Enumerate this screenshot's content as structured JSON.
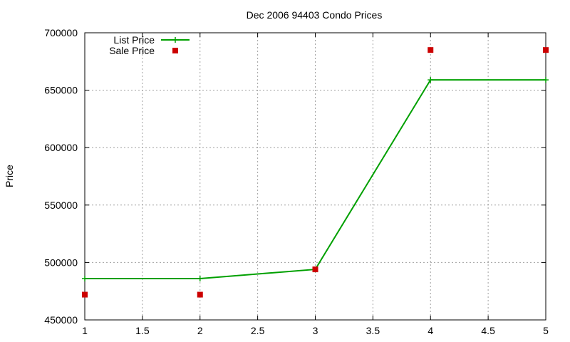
{
  "chart_data": {
    "type": "line",
    "title": "Dec 2006 94403 Condo Prices",
    "xlabel": "",
    "ylabel": "Price",
    "xlim": [
      1,
      5
    ],
    "ylim": [
      450000,
      700000
    ],
    "xticks": [
      "1",
      "1.5",
      "2",
      "2.5",
      "3",
      "3.5",
      "4",
      "4.5",
      "5"
    ],
    "yticks": [
      "450000",
      "500000",
      "550000",
      "600000",
      "650000",
      "700000"
    ],
    "grid": true,
    "legend_position": "top-left",
    "series": [
      {
        "name": "List Price",
        "style": "line-with-plus-markers",
        "color": "#00a000",
        "x": [
          1,
          2,
          3,
          4,
          5
        ],
        "y": [
          486000,
          486000,
          494000,
          659000,
          659000
        ]
      },
      {
        "name": "Sale Price",
        "style": "square-markers",
        "color": "#cc0000",
        "x": [
          1,
          2,
          3,
          4,
          5
        ],
        "y": [
          472000,
          472000,
          494000,
          685000,
          685000
        ]
      }
    ]
  }
}
